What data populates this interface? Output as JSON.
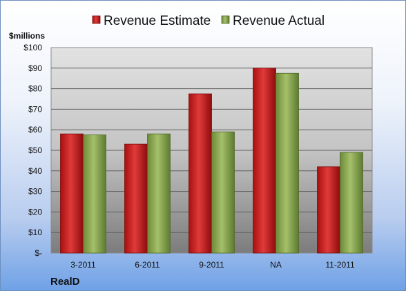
{
  "chart_data": {
    "type": "bar",
    "categories": [
      "3-2011",
      "6-2011",
      "9-2011",
      "NA",
      "11-2011"
    ],
    "series": [
      {
        "name": "Revenue Estimate",
        "values": [
          58,
          53,
          77.5,
          90,
          42
        ],
        "color": "#c81e1e"
      },
      {
        "name": "Revenue Actual",
        "values": [
          57.5,
          58,
          59,
          87.5,
          49
        ],
        "color": "#8aab4f"
      }
    ],
    "unit_label": "$millions",
    "ylim": [
      0,
      100
    ],
    "y_tick_labels": [
      "$-",
      "$10",
      "$20",
      "$30",
      "$40",
      "$50",
      "$60",
      "$70",
      "$80",
      "$90",
      "$100"
    ],
    "legend_position": "top",
    "grid": true,
    "company": "RealD"
  }
}
